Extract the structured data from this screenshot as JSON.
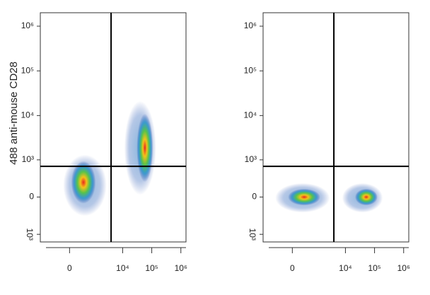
{
  "chart_data": [
    {
      "type": "density",
      "y_label": "488 anti-mouse CD28",
      "xlim": [
        -1500,
        1500000
      ],
      "ylim": [
        -1500,
        2000000
      ],
      "xticks": [
        0,
        {
          "value": 10000,
          "label": "10⁴"
        },
        {
          "value": 100000,
          "label": "10⁵"
        },
        {
          "value": 1000000,
          "label": "10⁶"
        }
      ],
      "yticks": [
        {
          "value": -1000,
          "label": "10³"
        },
        0,
        {
          "value": 1000,
          "label": "10³"
        },
        {
          "value": 10000,
          "label": "10⁴"
        },
        {
          "value": 100000,
          "label": "10⁵"
        },
        {
          "value": 1000000,
          "label": "10⁶"
        }
      ],
      "gates": {
        "x": 4000,
        "y": 700
      },
      "populations": [
        {
          "x": 400,
          "y": 250,
          "x_range": [
            -50,
            2000
          ],
          "y_range": [
            -250,
            1050
          ]
        },
        {
          "x": 58000,
          "y": 1880,
          "x_range": [
            16000,
            100000
          ],
          "y_range": [
            100,
            17000
          ]
        }
      ]
    },
    {
      "type": "density",
      "xlim": [
        -1500,
        1500000
      ],
      "ylim": [
        -1500,
        2000000
      ],
      "xticks": [
        0,
        {
          "value": 10000,
          "label": "10⁴"
        },
        {
          "value": 100000,
          "label": "10⁵"
        },
        {
          "value": 1000000,
          "label": "10⁶"
        }
      ],
      "yticks": [
        {
          "value": -1000,
          "label": "10³"
        },
        0,
        {
          "value": 1000,
          "label": "10³"
        },
        {
          "value": 10000,
          "label": "10⁴"
        },
        {
          "value": 100000,
          "label": "10⁵"
        },
        {
          "value": 1000000,
          "label": "10⁶"
        }
      ],
      "gates": {
        "x": 4000,
        "y": 700
      },
      "populations": [
        {
          "x": 325,
          "y": 0,
          "x_range": [
            -360,
            2070
          ],
          "y_range": [
            -183,
            156
          ]
        },
        {
          "x": 52000,
          "y": 0,
          "x_range": [
            10800,
            137000
          ],
          "y_range": [
            -183,
            156
          ]
        }
      ]
    }
  ]
}
